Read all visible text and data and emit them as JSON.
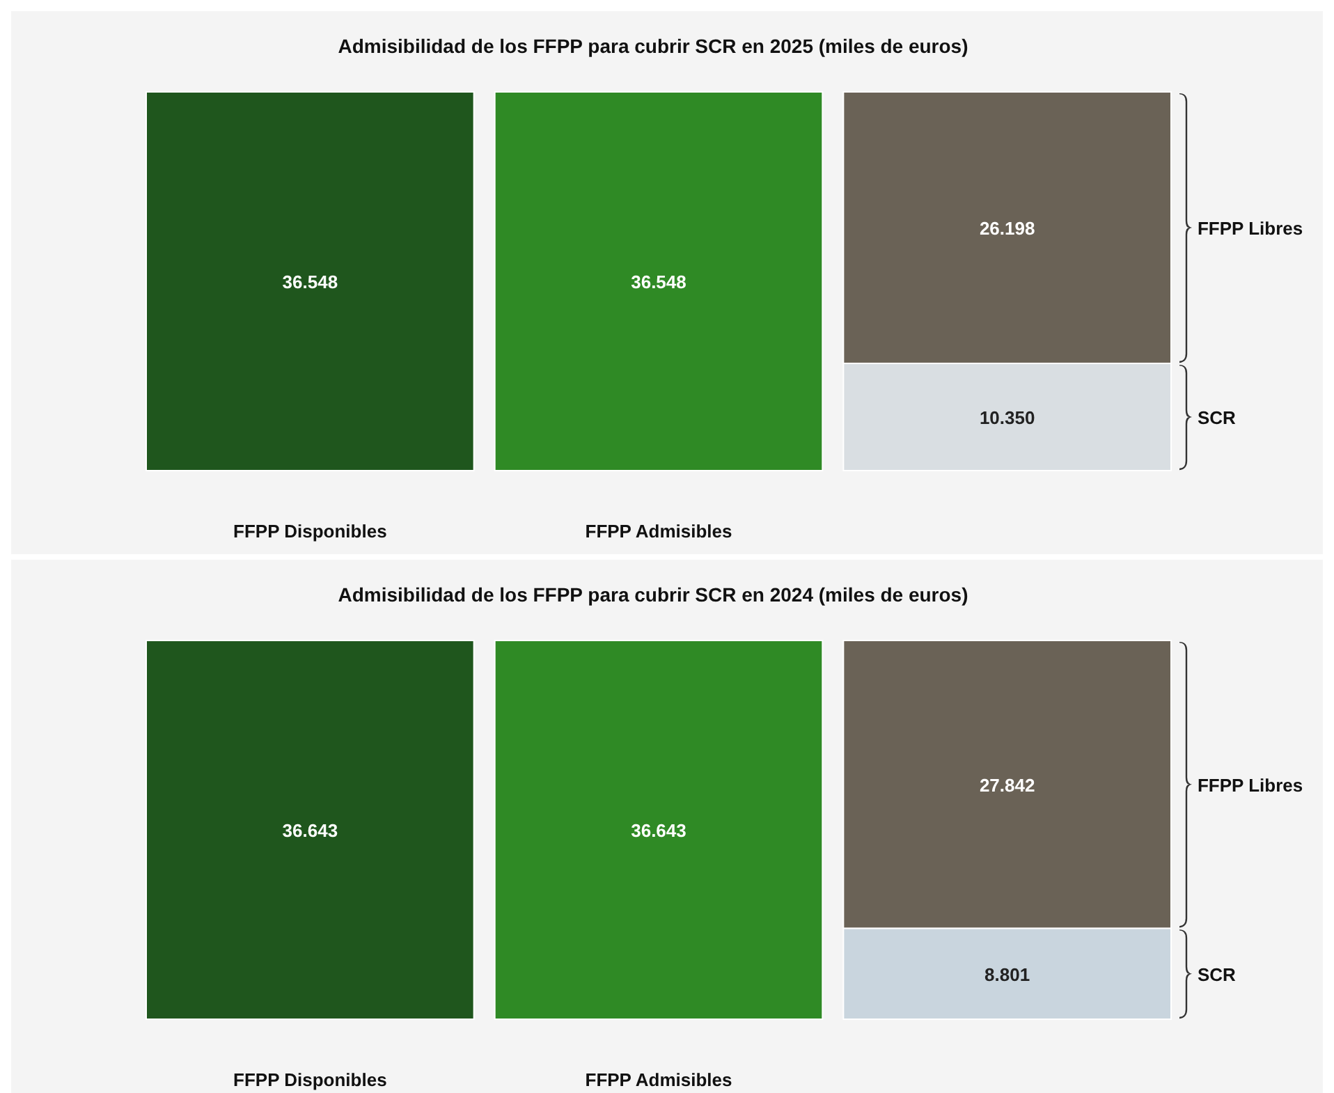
{
  "chart_data": [
    {
      "type": "bar",
      "title": "Admisibilidad de los FFPP para cubrir SCR en 2025 (miles de euros)",
      "stacked": true,
      "categories": [
        "FFPP Disponibles",
        "FFPP Admisibles",
        null
      ],
      "series": [
        {
          "color": "#1f561d",
          "values": [
            36548,
            null,
            null
          ],
          "value_labels": [
            "36.548",
            null,
            null
          ]
        },
        {
          "color": "#2f8a25",
          "values": [
            null,
            36548,
            null
          ],
          "value_labels": [
            null,
            "36.548",
            null
          ]
        },
        {
          "name": "SCR",
          "color": "#d9dee2",
          "values": [
            null,
            null,
            10350
          ],
          "value_labels": [
            null,
            null,
            "10.350"
          ]
        },
        {
          "name": "FFPP Libres",
          "color": "#6a6256",
          "values": [
            null,
            null,
            26198
          ],
          "value_labels": [
            null,
            null,
            "26.198"
          ]
        }
      ]
    },
    {
      "type": "bar",
      "title": "Admisibilidad de los FFPP para cubrir SCR en 2024 (miles de euros)",
      "stacked": true,
      "categories": [
        "FFPP Disponibles",
        "FFPP Admisibles",
        null
      ],
      "series": [
        {
          "color": "#1f561d",
          "values": [
            36643,
            null,
            null
          ],
          "value_labels": [
            "36.643",
            null,
            null
          ]
        },
        {
          "color": "#2f8a25",
          "values": [
            null,
            36643,
            null
          ],
          "value_labels": [
            null,
            "36.643",
            null
          ]
        },
        {
          "name": "SCR",
          "color": "#c9d5de",
          "values": [
            null,
            null,
            8801
          ],
          "value_labels": [
            null,
            null,
            "8.801"
          ]
        },
        {
          "name": "FFPP Libres",
          "color": "#6a6256",
          "values": [
            null,
            null,
            27842
          ],
          "value_labels": [
            null,
            null,
            "27.842"
          ]
        }
      ]
    }
  ]
}
